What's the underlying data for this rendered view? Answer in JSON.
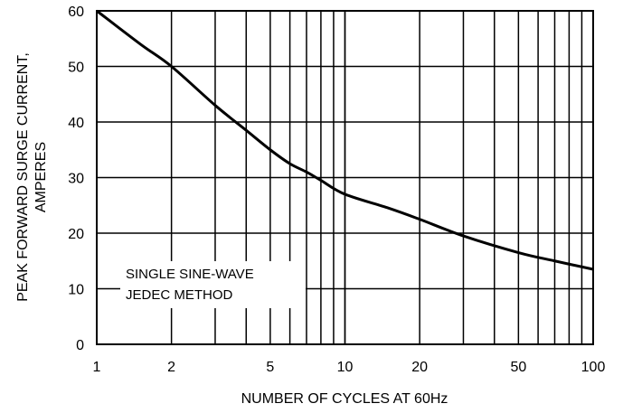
{
  "chart_data": {
    "type": "line",
    "xscale": "log",
    "xlim": [
      1,
      100
    ],
    "ylim": [
      0,
      60
    ],
    "xlabel": "NUMBER OF CYCLES AT 60Hz",
    "ylabel_lines": [
      "PEAK FORWARD SURGE CURRENT,",
      "AMPERES"
    ],
    "xtick_labels": [
      "1",
      "2",
      "5",
      "10",
      "20",
      "50",
      "100"
    ],
    "xtick_values": [
      1,
      2,
      5,
      10,
      20,
      50,
      100
    ],
    "ytick_values": [
      0,
      10,
      20,
      30,
      40,
      50,
      60
    ],
    "ytick_labels": [
      "0",
      "10",
      "20",
      "30",
      "40",
      "50",
      "60"
    ],
    "grid": true,
    "annotation_lines": [
      "SINGLE SINE-WAVE",
      "JEDEC METHOD"
    ],
    "series": [
      {
        "x": [
          1,
          1.5,
          2,
          3,
          4,
          5,
          6,
          7,
          8,
          10,
          15,
          20,
          30,
          50,
          70,
          100
        ],
        "y": [
          60,
          54,
          50,
          43,
          38.5,
          35,
          32.5,
          31,
          29.5,
          27,
          24.5,
          22.5,
          19.5,
          16.5,
          15,
          13.5
        ]
      }
    ],
    "line_color": "#000000"
  }
}
